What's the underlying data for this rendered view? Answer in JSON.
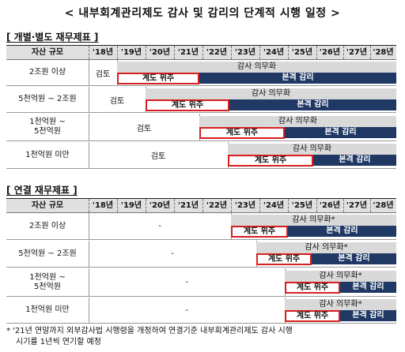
{
  "title": "< 내부회계관리제도 감사 및 감리의 단계적 시행 일정 >",
  "years": [
    "'18년",
    "'19년",
    "'20년",
    "'21년",
    "'22년",
    "'23년",
    "'24년",
    "'25년",
    "'26년",
    "'27년",
    "'28년"
  ],
  "size_header": "자산 규모",
  "review_label": "검토",
  "audit_mandate": "감사 의무화",
  "audit_mandate_star": "감사 의무화*",
  "design_focus": "계도 위주",
  "full_inspection": "본격 감리",
  "separate": {
    "heading": "[ 개별·별도 재무제표 ]",
    "rows": [
      {
        "size": "2조원 이상"
      },
      {
        "size": "5천억원 ~ 2조원"
      },
      {
        "size_line1": "1천억원 ~",
        "size_line2": "5천억원"
      },
      {
        "size": "1천억원 미만"
      }
    ]
  },
  "consolidated": {
    "heading": "[ 연결 재무제표 ]",
    "dash": "-",
    "rows": [
      {
        "size": "2조원 이상"
      },
      {
        "size": "5천억원 ~ 2조원"
      },
      {
        "size_line1": "1천억원 ~",
        "size_line2": "5천억원"
      },
      {
        "size": "1천억원 미만"
      }
    ]
  },
  "footnote_line1": "* '21년 연말까지 외부감사법 시행령을 개정하여 연결기준 내부회계관리제도 감사 시행",
  "footnote_line2": "시기를 1년씩 연기할 예정"
}
